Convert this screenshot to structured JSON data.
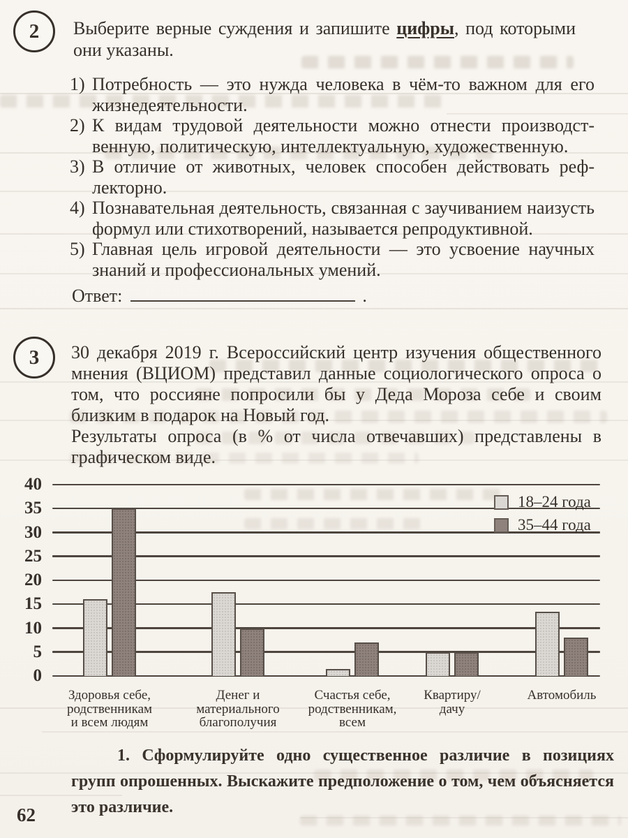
{
  "page": {
    "number": "62"
  },
  "task2": {
    "number": "2",
    "intro": {
      "before": "Выберите верные суждения и запишите ",
      "emphasis": "цифры",
      "after": ", под которыми они указаны."
    },
    "items": [
      {
        "num": "1)",
        "text": "Потребность — это нужда человека в чём-то важном для его жизнедеятельности."
      },
      {
        "num": "2)",
        "text": "К видам трудовой деятельности можно отнести производст­венную, политическую, интеллектуальную, художественную."
      },
      {
        "num": "3)",
        "text": "В отличие от животных, человек способен действовать реф­лекторно."
      },
      {
        "num": "4)",
        "text": "Познавательная деятельность, связанная с заучиванием наи­зусть формул или стихотворений, называется репродуктивной."
      },
      {
        "num": "5)",
        "text": "Главная цель игровой деятельности — это усвоение научных знаний и профессиональных умений."
      }
    ],
    "answer_label": "Ответ:",
    "answer_suffix": "."
  },
  "task3": {
    "number": "3",
    "paragraph1": "30 декабря 2019 г. Всероссийский центр изучения общественного мнения (ВЦИОМ) представил данные социологического опроса о том, что россияне попросили бы у Деда Мороза себе и своим близким в подарок на Новый год.",
    "paragraph2": "Результаты опроса (в % от числа отвечавших) представлены в графическом виде.",
    "question1": "1. Сформулируйте одно существенное различие в позициях групп опрошенных. Выскажите предположение о том, чем объясняется это различие."
  },
  "chart_data": {
    "type": "bar",
    "title": "",
    "value_unit": "%",
    "categories": [
      "Здоровья себе, родственникам и всем людям",
      "Денег и материального благополучия",
      "Счастья себе, родственникам, всем",
      "Квартиру/дачу",
      "Автомобиль"
    ],
    "category_lines": [
      [
        "Здоровья себе,",
        "родственникам",
        "и всем людям"
      ],
      [
        "Денег и",
        "материального",
        "благополучия"
      ],
      [
        "Счастья себе,",
        "родственникам,",
        "всем"
      ],
      [
        "Квартиру/",
        "дачу"
      ],
      [
        "Автомобиль"
      ]
    ],
    "series": [
      {
        "name": "18–24 года",
        "color": "#dbd8d4",
        "values": [
          16,
          17.5,
          1.5,
          5,
          13.5
        ]
      },
      {
        "name": "35–44 года",
        "color": "#8f827d",
        "values": [
          35,
          10,
          7,
          5,
          8
        ]
      }
    ],
    "ylim": [
      0,
      40
    ],
    "yticks": [
      0,
      5,
      10,
      15,
      20,
      25,
      30,
      35,
      40
    ],
    "grid": true,
    "legend_position": "top-right"
  }
}
